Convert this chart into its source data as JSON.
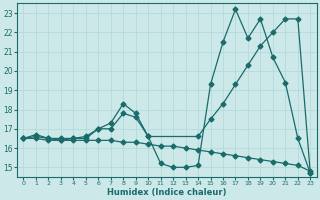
{
  "xlabel": "Humidex (Indice chaleur)",
  "xlim": [
    -0.5,
    23.5
  ],
  "ylim": [
    14.5,
    23.5
  ],
  "yticks": [
    15,
    16,
    17,
    18,
    19,
    20,
    21,
    22,
    23
  ],
  "xticks": [
    0,
    1,
    2,
    3,
    4,
    5,
    6,
    7,
    8,
    9,
    10,
    11,
    12,
    13,
    14,
    15,
    16,
    17,
    18,
    19,
    20,
    21,
    22,
    23
  ],
  "bg_color": "#cde8e8",
  "line_color": "#1a6b6b",
  "grid_color": "#b0d8d8",
  "line1_x": [
    0,
    1,
    2,
    3,
    4,
    5,
    6,
    7,
    8,
    9,
    10,
    11,
    12,
    13,
    14,
    15,
    16,
    17,
    18,
    19,
    20,
    21,
    22,
    23
  ],
  "line1_y": [
    16.5,
    16.7,
    16.5,
    16.5,
    16.5,
    16.6,
    17.0,
    17.3,
    18.3,
    17.8,
    16.6,
    15.2,
    15.0,
    15.0,
    15.1,
    19.3,
    21.5,
    23.2,
    21.7,
    22.7,
    20.7,
    19.4,
    16.5,
    14.7
  ],
  "line2_x": [
    0,
    1,
    2,
    3,
    4,
    5,
    6,
    7,
    8,
    9,
    10,
    14,
    15,
    16,
    17,
    18,
    19,
    20,
    21,
    22,
    23
  ],
  "line2_y": [
    16.5,
    16.6,
    16.5,
    16.4,
    16.5,
    16.5,
    17.0,
    17.0,
    17.8,
    17.6,
    16.6,
    16.6,
    17.5,
    18.3,
    19.3,
    20.3,
    21.3,
    22.0,
    22.7,
    22.7,
    14.7
  ],
  "line3_x": [
    0,
    1,
    2,
    3,
    4,
    5,
    6,
    7,
    8,
    9,
    10,
    11,
    12,
    13,
    14,
    15,
    16,
    17,
    18,
    19,
    20,
    21,
    22,
    23
  ],
  "line3_y": [
    16.5,
    16.5,
    16.4,
    16.4,
    16.4,
    16.4,
    16.4,
    16.4,
    16.3,
    16.3,
    16.2,
    16.1,
    16.1,
    16.0,
    15.9,
    15.8,
    15.7,
    15.6,
    15.5,
    15.4,
    15.3,
    15.2,
    15.1,
    14.8
  ]
}
